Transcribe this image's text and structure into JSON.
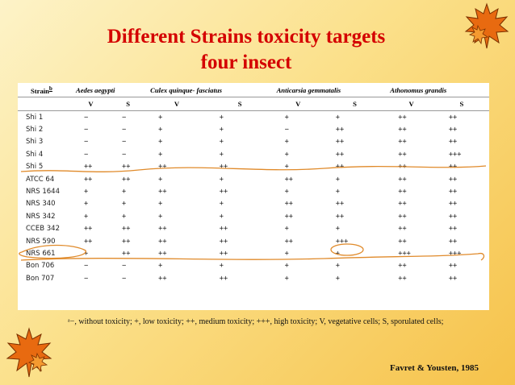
{
  "title": {
    "line1": "Different Strains  toxicity targets",
    "line2": "four insect"
  },
  "table": {
    "strain_header": "Strain",
    "strain_sup": "b",
    "insects": [
      "Aedes aegypti",
      "Culex quinque- fasciatus",
      "Anticarsia gemmatalis",
      "Athonomus grandis"
    ],
    "sub_headers": [
      "V",
      "S",
      "V",
      "S",
      "V",
      "S",
      "V",
      "S"
    ],
    "rows": [
      {
        "strain": "Shi 1",
        "values": [
          "−",
          "−",
          "+",
          "+",
          "+",
          "+",
          "++",
          "++"
        ]
      },
      {
        "strain": "Shi 2",
        "values": [
          "−",
          "−",
          "+",
          "+",
          "−",
          "++",
          "++",
          "++"
        ]
      },
      {
        "strain": "Shi 3",
        "values": [
          "−",
          "−",
          "+",
          "+",
          "+",
          "++",
          "++",
          "++"
        ]
      },
      {
        "strain": "Shi 4",
        "values": [
          "−",
          "−",
          "+",
          "+",
          "+",
          "++",
          "++",
          "+++"
        ]
      },
      {
        "strain": "Shi 5",
        "values": [
          "++",
          "++",
          "++",
          "++",
          "+",
          "++",
          "++",
          "++"
        ]
      },
      {
        "strain": "ATCC 64",
        "values": [
          "++",
          "++",
          "+",
          "+",
          "++",
          "+",
          "++",
          "++"
        ]
      },
      {
        "strain": "NRS 1644",
        "values": [
          "+",
          "+",
          "++",
          "++",
          "+",
          "+",
          "++",
          "++"
        ]
      },
      {
        "strain": "NRS 340",
        "values": [
          "+",
          "+",
          "+",
          "+",
          "++",
          "++",
          "++",
          "++"
        ]
      },
      {
        "strain": "NRS 342",
        "values": [
          "+",
          "+",
          "+",
          "+",
          "++",
          "++",
          "++",
          "++"
        ]
      },
      {
        "strain": "CCEB 342",
        "values": [
          "++",
          "++",
          "++",
          "++",
          "+",
          "+",
          "++",
          "++"
        ]
      },
      {
        "strain": "NRS 590",
        "values": [
          "++",
          "++",
          "++",
          "++",
          "++",
          "+++",
          "++",
          "++"
        ]
      },
      {
        "strain": "NRS 661",
        "values": [
          "+",
          "++",
          "++",
          "++",
          "+",
          "+",
          "+++",
          "+++"
        ]
      },
      {
        "strain": "Bon 706",
        "values": [
          "−",
          "−",
          "+",
          "+",
          "+",
          "+",
          "++",
          "++"
        ]
      },
      {
        "strain": "Bon 707",
        "values": [
          "−",
          "−",
          "++",
          "++",
          "+",
          "+",
          "++",
          "++"
        ]
      }
    ]
  },
  "footnote": "ᵃ−, without toxicity; +, low toxicity; ++, medium toxicity; +++, high toxicity; V, vegetative cells; S, sporulated cells;",
  "credit": "Favret & Yousten, 1985",
  "colors": {
    "title": "#d40000",
    "ink": "#e08a2a",
    "leaf": "#e86a10"
  },
  "icons": [
    "maple-leaf-icon"
  ]
}
